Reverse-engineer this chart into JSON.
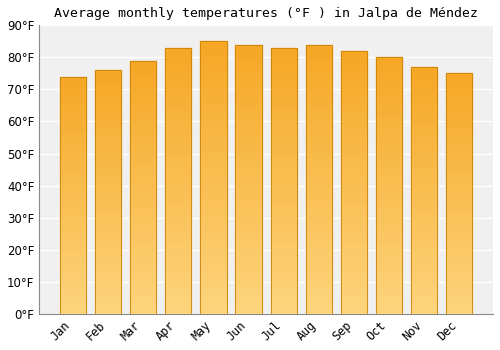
{
  "title": "Average monthly temperatures (°F ) in Jalpa de Méndez",
  "months": [
    "Jan",
    "Feb",
    "Mar",
    "Apr",
    "May",
    "Jun",
    "Jul",
    "Aug",
    "Sep",
    "Oct",
    "Nov",
    "Dec"
  ],
  "values": [
    74,
    76,
    79,
    83,
    85,
    84,
    83,
    84,
    82,
    80,
    77,
    75
  ],
  "bar_color_top": "#F5A623",
  "bar_color_bottom": "#FDD47C",
  "bar_edge_color": "#C8830A",
  "background_color": "#FFFFFF",
  "plot_bg_color": "#F0F0F0",
  "grid_color": "#FFFFFF",
  "ylim": [
    0,
    90
  ],
  "yticks": [
    0,
    10,
    20,
    30,
    40,
    50,
    60,
    70,
    80,
    90
  ],
  "title_fontsize": 9.5,
  "tick_fontsize": 8.5,
  "bar_width": 0.75
}
